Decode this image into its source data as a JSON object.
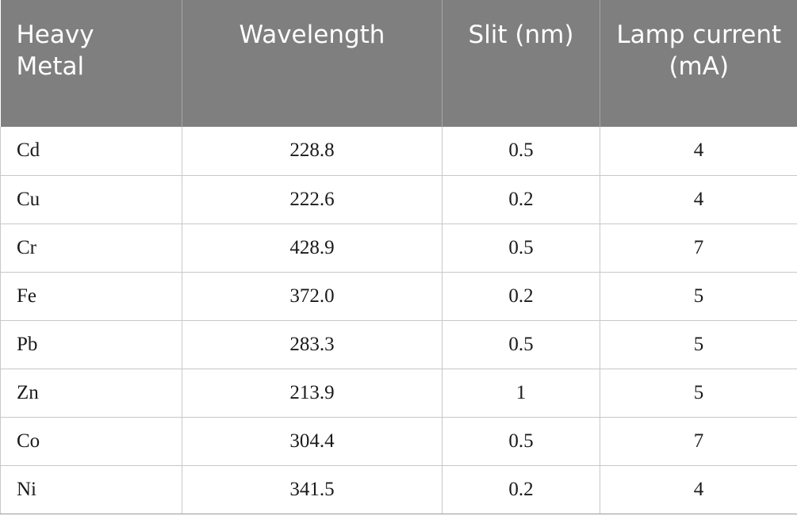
{
  "table": {
    "headers": [
      "Heavy Metal",
      "Wavelength",
      "Slit (nm)",
      "Lamp current (mA)"
    ],
    "rows": [
      [
        "Cd",
        "228.8",
        "0.5",
        "4"
      ],
      [
        "Cu",
        "222.6",
        "0.2",
        "4"
      ],
      [
        "Cr",
        "428.9",
        "0.5",
        "7"
      ],
      [
        "Fe",
        "372.0",
        "0.2",
        "5"
      ],
      [
        "Pb",
        "283.3",
        "0.5",
        "5"
      ],
      [
        "Zn",
        "213.9",
        "1",
        "5"
      ],
      [
        "Co",
        "304.4",
        "0.5",
        "7"
      ],
      [
        "Ni",
        "341.5",
        "0.2",
        "4"
      ]
    ]
  }
}
